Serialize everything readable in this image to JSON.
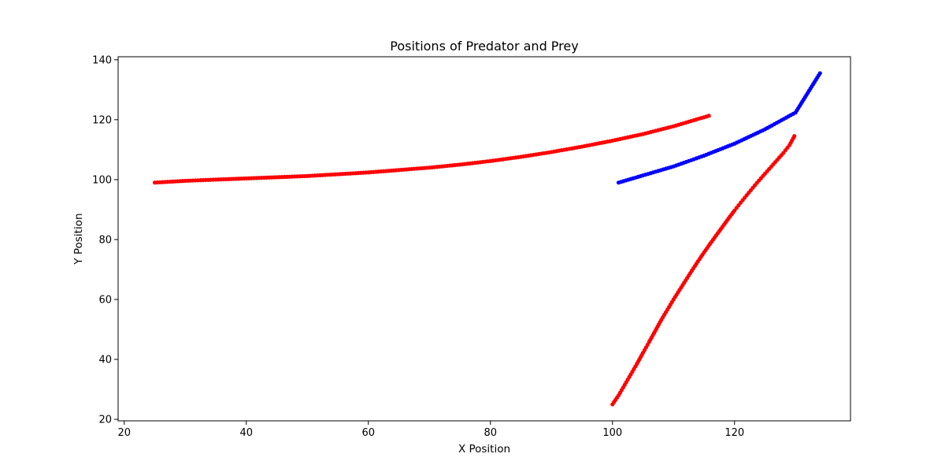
{
  "chart_data": {
    "type": "scatter",
    "title": "Positions of Predator and Prey",
    "xlabel": "X Position",
    "ylabel": "Y Position",
    "xlim": [
      19,
      139
    ],
    "ylim": [
      19.5,
      141
    ],
    "xticks": [
      20,
      40,
      60,
      80,
      100,
      120
    ],
    "yticks": [
      20,
      40,
      60,
      80,
      100,
      120,
      140
    ],
    "xtick_labels": [
      "20",
      "40",
      "60",
      "80",
      "100",
      "120"
    ],
    "ytick_labels": [
      "20",
      "40",
      "60",
      "80",
      "100",
      "120",
      "140"
    ],
    "grid": false,
    "legend": false,
    "series": [
      {
        "color": "#ff0000",
        "points": [
          [
            25,
            99
          ],
          [
            30,
            99.6
          ],
          [
            35,
            100
          ],
          [
            40,
            100.4
          ],
          [
            45,
            100.8
          ],
          [
            50,
            101.2
          ],
          [
            55,
            101.8
          ],
          [
            60,
            102.4
          ],
          [
            65,
            103.2
          ],
          [
            70,
            104
          ],
          [
            75,
            105
          ],
          [
            80,
            106.2
          ],
          [
            85,
            107.6
          ],
          [
            90,
            109.2
          ],
          [
            95,
            111
          ],
          [
            100,
            113
          ],
          [
            105,
            115.2
          ],
          [
            110,
            117.8
          ],
          [
            115.8,
            121.3
          ]
        ]
      },
      {
        "color": "#ff0000",
        "points": [
          [
            100,
            25
          ],
          [
            101,
            28
          ],
          [
            102,
            31.5
          ],
          [
            103,
            35
          ],
          [
            104,
            38.5
          ],
          [
            105,
            42.2
          ],
          [
            106,
            45.8
          ],
          [
            107,
            49.5
          ],
          [
            108,
            53.2
          ],
          [
            109,
            56.6
          ],
          [
            110,
            60
          ],
          [
            111,
            63.2
          ],
          [
            112,
            66.4
          ],
          [
            113,
            69.6
          ],
          [
            114,
            72.7
          ],
          [
            115,
            75.7
          ],
          [
            116,
            78.6
          ],
          [
            117,
            81.4
          ],
          [
            118,
            84.2
          ],
          [
            119,
            87
          ],
          [
            120,
            89.7
          ],
          [
            121,
            92.3
          ],
          [
            122,
            94.8
          ],
          [
            123,
            97.3
          ],
          [
            124,
            99.7
          ],
          [
            125,
            102
          ],
          [
            126,
            104.3
          ],
          [
            127,
            106.6
          ],
          [
            128,
            108.9
          ],
          [
            129,
            111.5
          ],
          [
            129.8,
            114.5
          ]
        ]
      },
      {
        "color": "#0000ff",
        "points": [
          [
            101,
            99
          ],
          [
            105,
            101.4
          ],
          [
            110,
            104.4
          ],
          [
            115,
            108
          ],
          [
            120,
            112
          ],
          [
            125,
            116.8
          ],
          [
            130,
            122.4
          ],
          [
            134,
            135.5
          ]
        ]
      }
    ]
  }
}
